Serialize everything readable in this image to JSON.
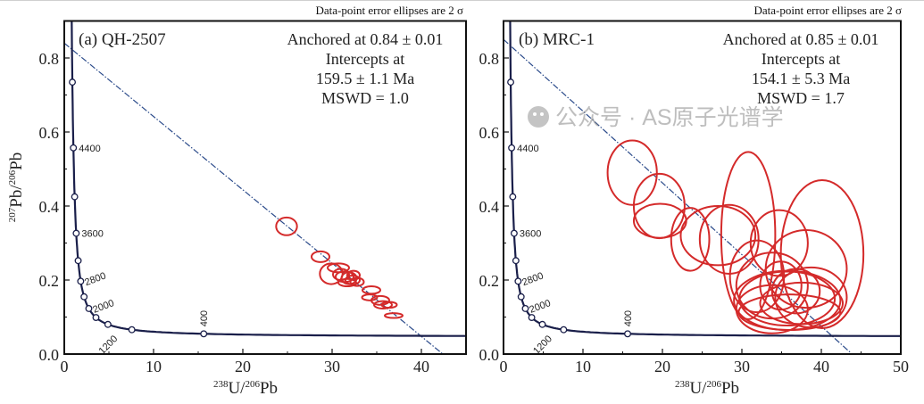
{
  "chart_data": [
    {
      "type": "scatter",
      "subtype": "tera-wasserburg-concordia",
      "header": "Data-point error ellipses are 2 σ",
      "panel_label": "(a) QH-2507",
      "annotation": [
        "Anchored at 0.84 ± 0.01",
        "Intercepts at",
        "159.5 ± 1.1 Ma",
        "MSWD = 1.0"
      ],
      "xlabel": {
        "sup1": "238",
        "b1": "U/",
        "sup2": "206",
        "b2": "Pb"
      },
      "ylabel": {
        "sup1": "207",
        "b1": "Pb/",
        "sup2": "206",
        "b2": "Pb"
      },
      "xlim": [
        0,
        45
      ],
      "ylim": [
        0,
        0.9
      ],
      "xticks": [
        0,
        10,
        20,
        30,
        40
      ],
      "xtick_labels": [
        "0",
        "10",
        "20",
        "30",
        "40"
      ],
      "yticks": [
        0,
        0.2,
        0.4,
        0.6,
        0.8
      ],
      "ytick_labels": [
        "0.0",
        "0.2",
        "0.4",
        "0.6",
        "0.8"
      ],
      "anchor_207_206": 0.84,
      "intercept_age_ma": 159.5,
      "concordia_marker_ages_ma": [
        400,
        800,
        1200,
        1600,
        2000,
        2400,
        2800,
        3200,
        3600,
        4000,
        4400,
        4800
      ],
      "concordia_labels": [
        "400",
        "1200",
        "2000",
        "2800",
        "3600",
        "4400"
      ],
      "ellipses": [
        {
          "x": 24.9,
          "y": 0.345,
          "rx": 1.17,
          "ry": 0.024
        },
        {
          "x": 28.7,
          "y": 0.263,
          "rx": 1.0,
          "ry": 0.0145
        },
        {
          "x": 29.9,
          "y": 0.217,
          "rx": 1.27,
          "ry": 0.028
        },
        {
          "x": 30.7,
          "y": 0.233,
          "rx": 1.2,
          "ry": 0.012
        },
        {
          "x": 31.0,
          "y": 0.215,
          "rx": 0.9,
          "ry": 0.015
        },
        {
          "x": 31.4,
          "y": 0.209,
          "rx": 1.0,
          "ry": 0.0145
        },
        {
          "x": 31.9,
          "y": 0.205,
          "rx": 0.85,
          "ry": 0.016
        },
        {
          "x": 32.3,
          "y": 0.2,
          "rx": 0.8,
          "ry": 0.012
        },
        {
          "x": 31.7,
          "y": 0.193,
          "rx": 1.0,
          "ry": 0.01
        },
        {
          "x": 32.4,
          "y": 0.213,
          "rx": 0.7,
          "ry": 0.012
        },
        {
          "x": 32.8,
          "y": 0.195,
          "rx": 0.75,
          "ry": 0.011
        },
        {
          "x": 34.4,
          "y": 0.173,
          "rx": 1.0,
          "ry": 0.01
        },
        {
          "x": 34.2,
          "y": 0.153,
          "rx": 0.85,
          "ry": 0.008
        },
        {
          "x": 35.4,
          "y": 0.145,
          "rx": 1.0,
          "ry": 0.012
        },
        {
          "x": 35.7,
          "y": 0.133,
          "rx": 1.0,
          "ry": 0.01
        },
        {
          "x": 36.4,
          "y": 0.133,
          "rx": 0.85,
          "ry": 0.008
        },
        {
          "x": 36.9,
          "y": 0.104,
          "rx": 1.0,
          "ry": 0.0065
        }
      ]
    },
    {
      "type": "scatter",
      "subtype": "tera-wasserburg-concordia",
      "header": "Data-point error ellipses are 2 σ",
      "panel_label": "(b) MRC-1",
      "annotation": [
        "Anchored at 0.85 ± 0.01",
        "Intercepts at",
        "154.1 ± 5.3 Ma",
        "MSWD = 1.7"
      ],
      "xlabel": {
        "sup1": "238",
        "b1": "U/",
        "sup2": "206",
        "b2": "Pb"
      },
      "xlim": [
        0,
        50
      ],
      "ylim": [
        0,
        0.9
      ],
      "xticks": [
        0,
        10,
        20,
        30,
        40,
        50
      ],
      "xtick_labels": [
        "0",
        "10",
        "20",
        "30",
        "40",
        "50"
      ],
      "yticks": [
        0,
        0.2,
        0.4,
        0.6,
        0.8
      ],
      "ytick_labels": [
        "0.0",
        "0.2",
        "0.4",
        "0.6",
        "0.8"
      ],
      "anchor_207_206": 0.85,
      "intercept_age_ma": 154.1,
      "concordia_marker_ages_ma": [
        400,
        800,
        1200,
        1600,
        2000,
        2400,
        2800,
        3200,
        3600,
        4000,
        4400,
        4800
      ],
      "concordia_labels": [
        "400",
        "1200",
        "2000",
        "2800",
        "3600",
        "4400"
      ],
      "ellipses": [
        {
          "x": 16.2,
          "y": 0.49,
          "rx": 3.1,
          "ry": 0.087
        },
        {
          "x": 19.6,
          "y": 0.4,
          "rx": 3.2,
          "ry": 0.087
        },
        {
          "x": 19.7,
          "y": 0.36,
          "rx": 3.3,
          "ry": 0.046
        },
        {
          "x": 23.5,
          "y": 0.31,
          "rx": 2.4,
          "ry": 0.085
        },
        {
          "x": 27.0,
          "y": 0.32,
          "rx": 4.7,
          "ry": 0.08
        },
        {
          "x": 28.4,
          "y": 0.31,
          "rx": 3.7,
          "ry": 0.093
        },
        {
          "x": 30.8,
          "y": 0.32,
          "rx": 3.4,
          "ry": 0.226
        },
        {
          "x": 40.1,
          "y": 0.27,
          "rx": 5.2,
          "ry": 0.2
        },
        {
          "x": 34.7,
          "y": 0.3,
          "rx": 3.6,
          "ry": 0.089
        },
        {
          "x": 38.1,
          "y": 0.23,
          "rx": 5.1,
          "ry": 0.105
        },
        {
          "x": 35.7,
          "y": 0.15,
          "rx": 6.0,
          "ry": 0.073
        },
        {
          "x": 33.8,
          "y": 0.185,
          "rx": 4.5,
          "ry": 0.089
        },
        {
          "x": 37.5,
          "y": 0.137,
          "rx": 5.2,
          "ry": 0.056
        },
        {
          "x": 36.0,
          "y": 0.113,
          "rx": 6.4,
          "ry": 0.048
        },
        {
          "x": 31.9,
          "y": 0.21,
          "rx": 3.4,
          "ry": 0.097
        },
        {
          "x": 38.7,
          "y": 0.153,
          "rx": 4.5,
          "ry": 0.081
        },
        {
          "x": 34.9,
          "y": 0.185,
          "rx": 2.6,
          "ry": 0.065
        },
        {
          "x": 35.7,
          "y": 0.145,
          "rx": 6.7,
          "ry": 0.08
        },
        {
          "x": 33.8,
          "y": 0.121,
          "rx": 4.5,
          "ry": 0.065
        },
        {
          "x": 36.8,
          "y": 0.17,
          "rx": 3.0,
          "ry": 0.06
        }
      ]
    }
  ],
  "watermark": {
    "text": "公众号 · AS原子光谱学",
    "icon": "wechat-icon"
  },
  "colors": {
    "ellipse": "#d42a2a",
    "concordia": "#1a1f4a",
    "discordia": "#2a4a8a",
    "axis": "#111111"
  }
}
